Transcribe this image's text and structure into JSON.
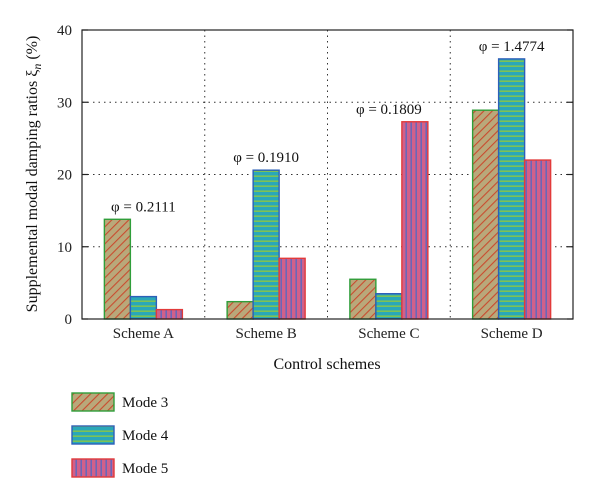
{
  "chart_data": {
    "type": "bar",
    "categories": [
      "Scheme A",
      "Scheme B",
      "Scheme C",
      "Scheme D"
    ],
    "series": [
      {
        "name": "Mode 3",
        "values": [
          13.8,
          2.4,
          5.5,
          28.9
        ],
        "fill": "#b9a87a",
        "stroke": "#2f9e3a",
        "hatch": "diagonal"
      },
      {
        "name": "Mode 4",
        "values": [
          3.1,
          20.6,
          3.5,
          36.0
        ],
        "fill": "#35a5b5",
        "stroke": "#2d5fb8",
        "hatch": "horizontal"
      },
      {
        "name": "Mode 5",
        "values": [
          1.3,
          8.4,
          27.3,
          22.0
        ],
        "fill": "#c46a98",
        "stroke": "#e23a3a",
        "hatch": "vertical"
      }
    ],
    "annotations": [
      {
        "category": "Scheme A",
        "text": "φ = 0.2111"
      },
      {
        "category": "Scheme B",
        "text": "φ = 0.1910"
      },
      {
        "category": "Scheme C",
        "text": "φ = 0.1809"
      },
      {
        "category": "Scheme D",
        "text": "φ = 1.4774"
      }
    ],
    "xlabel": "Control schemes",
    "ylabel": "Supplemental modal damping ratios ξ",
    "ylabel_sub": "n",
    "ylabel_unit": " (%)",
    "ylim": [
      0,
      40
    ],
    "yticks": [
      0,
      10,
      20,
      30,
      40
    ],
    "grid": true,
    "legend_position": "bottom-left"
  }
}
